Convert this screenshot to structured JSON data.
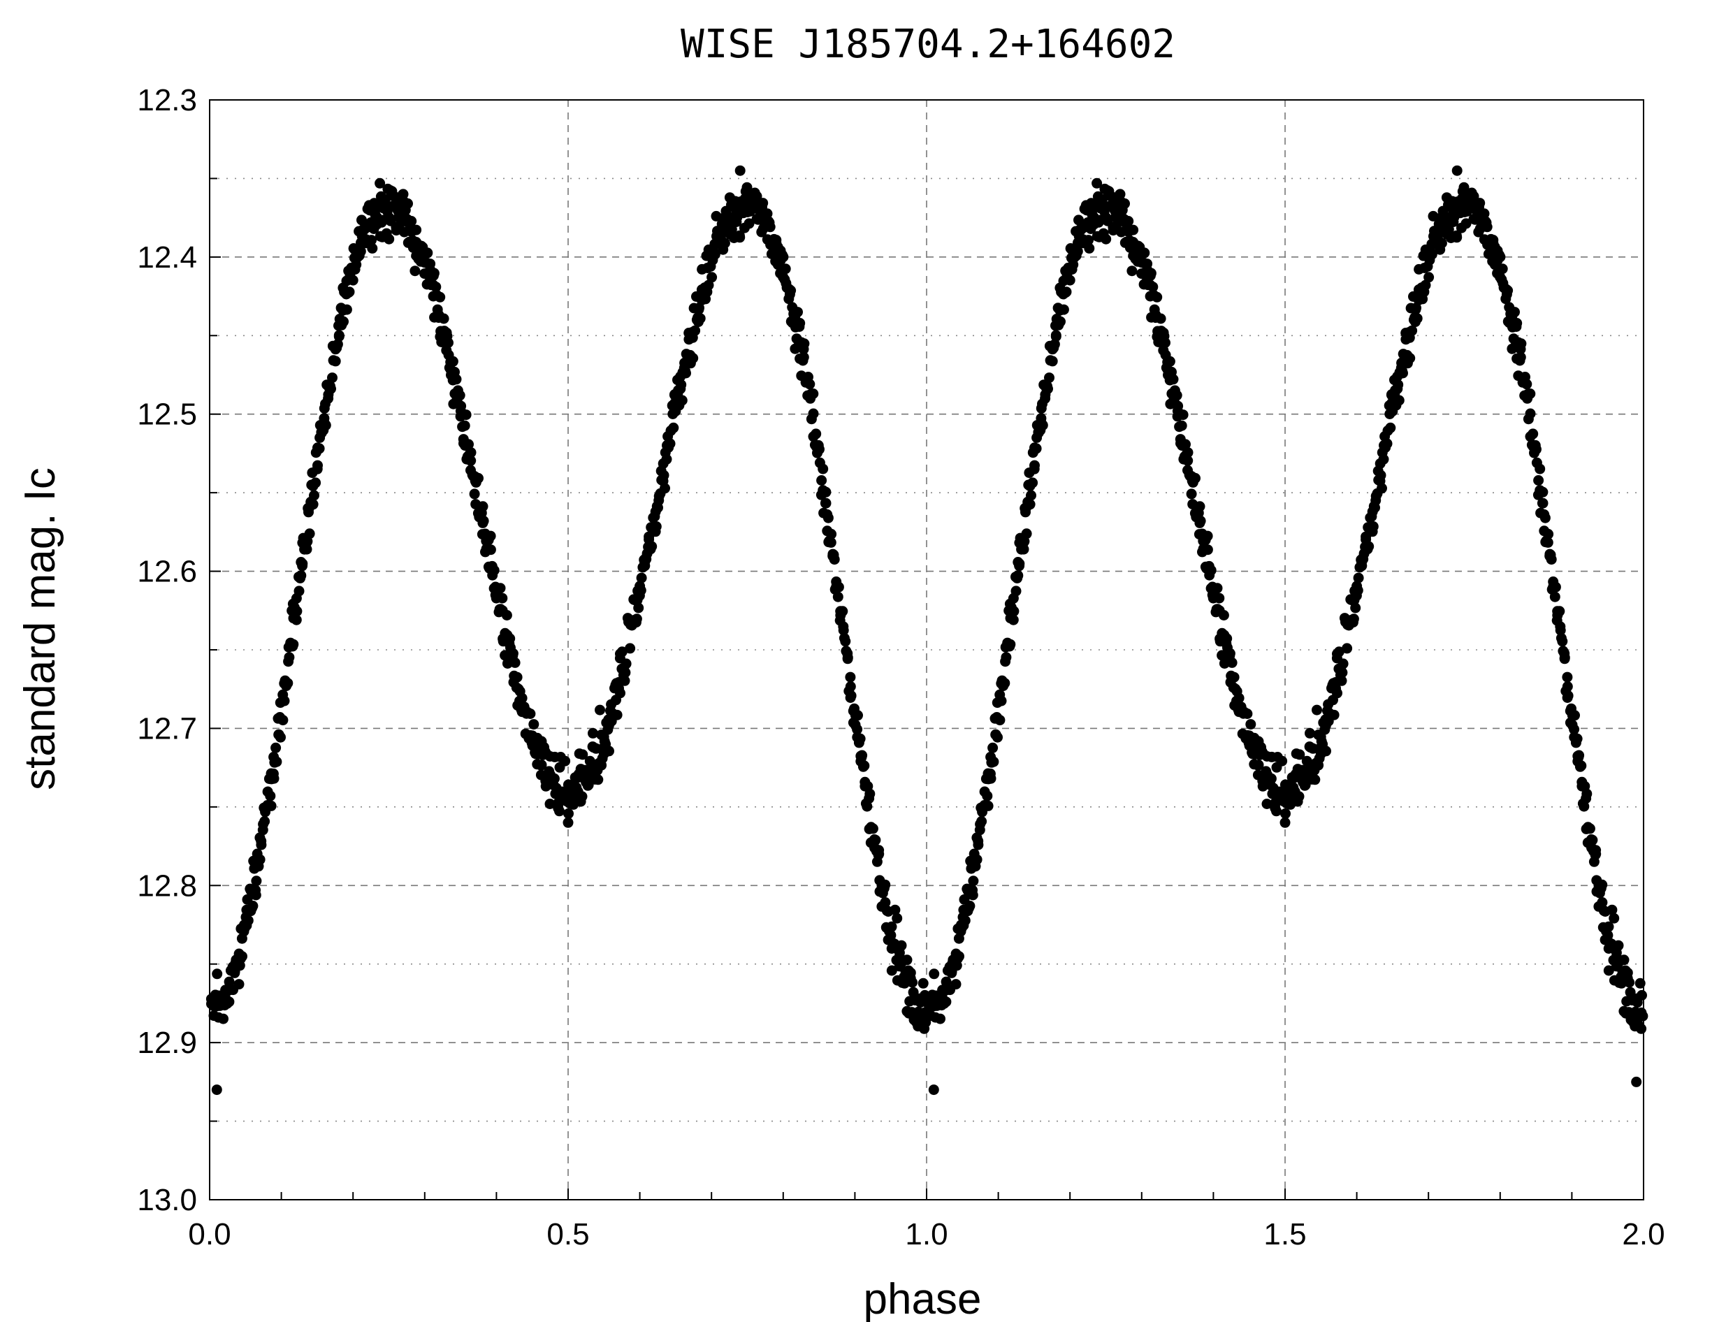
{
  "chart_data": {
    "type": "scatter",
    "title": "WISE J185704.2+164602",
    "xlabel": "phase",
    "ylabel": "standard mag.  Ic",
    "xlim": [
      0.0,
      2.0
    ],
    "ylim": [
      12.3,
      13.0
    ],
    "y_inverted": true,
    "x_ticks": [
      "0.0",
      "0.5",
      "1.0",
      "1.5",
      "2.0"
    ],
    "y_ticks": [
      "12.3",
      "12.4",
      "12.5",
      "12.6",
      "12.7",
      "12.8",
      "12.9",
      "13.0"
    ],
    "grid": "dashed at major ticks, dotted at half-major y",
    "marker_color": "#000000",
    "light_curve_model": {
      "max_mag": 12.37,
      "primary_min_mag": 12.88,
      "secondary_min_mag": 12.74,
      "primary_min_phase": 0.0,
      "secondary_min_phase": 0.5
    },
    "observed_extremes": [
      {
        "x": 0.01,
        "y": 12.93
      },
      {
        "x": 0.27,
        "y": 12.36
      },
      {
        "x": 0.5,
        "y": 12.76
      },
      {
        "x": 0.74,
        "y": 12.345
      },
      {
        "x": 1.01,
        "y": 12.93
      },
      {
        "x": 1.27,
        "y": 12.36
      },
      {
        "x": 1.5,
        "y": 12.76
      },
      {
        "x": 1.74,
        "y": 12.345
      },
      {
        "x": 1.99,
        "y": 12.925
      }
    ]
  }
}
